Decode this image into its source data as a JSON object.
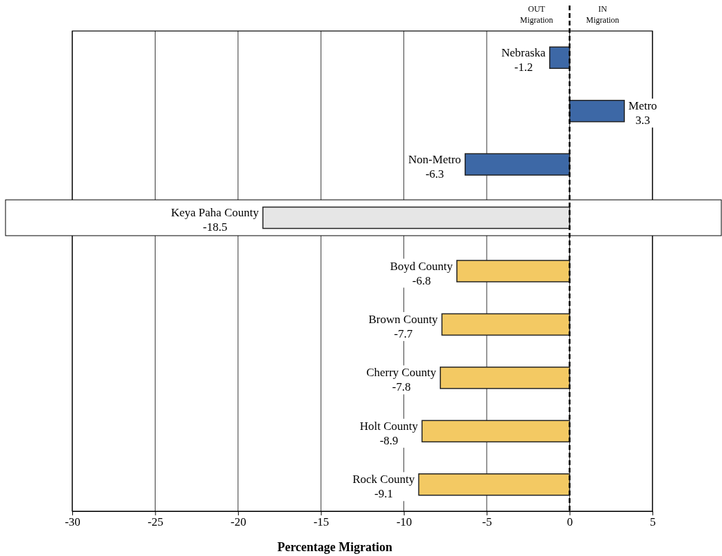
{
  "chart_data": {
    "type": "bar",
    "orientation": "horizontal",
    "xlabel": "Percentage Migration",
    "categories": [
      "Nebraska",
      "Metro",
      "Non-Metro",
      "Keya Paha County",
      "Boyd County",
      "Brown County",
      "Cherry County",
      "Holt County",
      "Rock County"
    ],
    "values": [
      -1.2,
      3.3,
      -6.3,
      -18.5,
      -6.8,
      -7.7,
      -7.8,
      -8.9,
      -9.1
    ],
    "colors": [
      "#3d68a6",
      "#3d68a6",
      "#3d68a6",
      "#e6e6e6",
      "#f3c963",
      "#f3c963",
      "#f3c963",
      "#f3c963",
      "#f3c963"
    ],
    "data_labels": true,
    "xlim": [
      -30,
      5
    ],
    "xticks": [
      -30,
      -25,
      -20,
      -15,
      -10,
      -5,
      0,
      5
    ],
    "grid": "x",
    "ref_lines": [
      {
        "axis": "x",
        "value": 0,
        "line_style": "dashed",
        "color": "#000000"
      }
    ],
    "annotations": [
      "OUT Migration",
      "IN Migration"
    ]
  }
}
